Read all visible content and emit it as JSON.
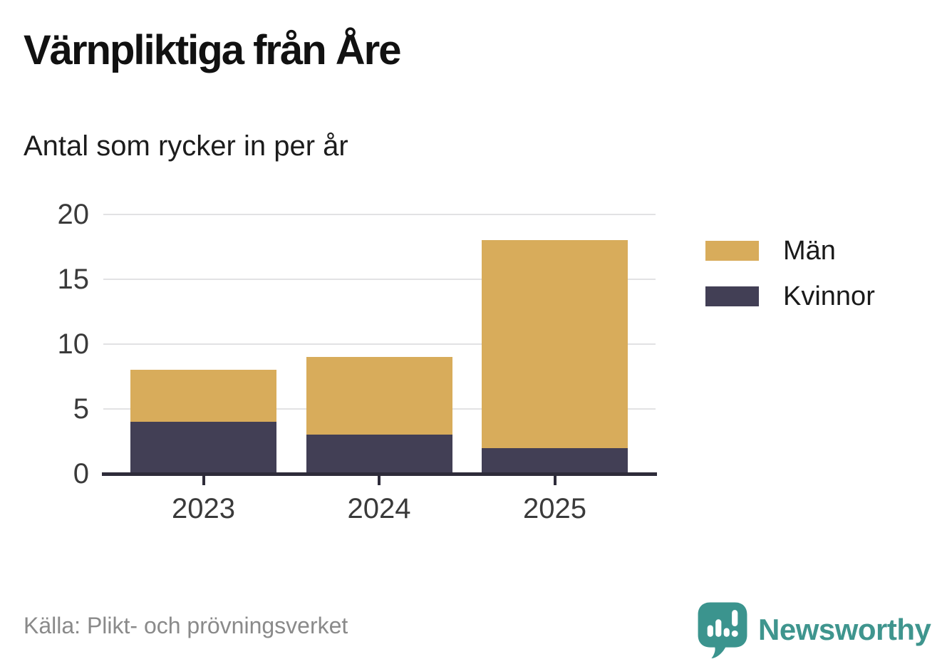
{
  "header": {
    "title": "Värnpliktiga från Åre",
    "subtitle": "Antal som rycker in per år"
  },
  "chart_data": {
    "type": "bar",
    "stacked": true,
    "title": "Värnpliktiga från Åre",
    "subtitle": "Antal som rycker in per år",
    "categories": [
      "2023",
      "2024",
      "2025"
    ],
    "series": [
      {
        "name": "Män",
        "color": "#d8ac5b",
        "values": [
          4,
          6,
          16
        ]
      },
      {
        "name": "Kvinnor",
        "color": "#423f55",
        "values": [
          4,
          3,
          2
        ]
      }
    ],
    "stack_order_bottom_to_top": [
      "Kvinnor",
      "Män"
    ],
    "totals": [
      8,
      9,
      18
    ],
    "xlabel": "",
    "ylabel": "",
    "ylim": [
      0,
      20
    ],
    "yticks": [
      0,
      5,
      10,
      15,
      20
    ],
    "grid": true,
    "legend_position": "right"
  },
  "footer": {
    "source": "Källa: Plikt- och prövningsverket",
    "brand": "Newsworthy"
  },
  "colors": {
    "men": "#d8ac5b",
    "women": "#423f55",
    "axis": "#2e2c3a",
    "gridline": "#e2e2e4",
    "tick_label": "#3a3a3a",
    "source_text": "#8a8a8a",
    "brand_teal": "#3b948e",
    "background": "#ffffff"
  }
}
